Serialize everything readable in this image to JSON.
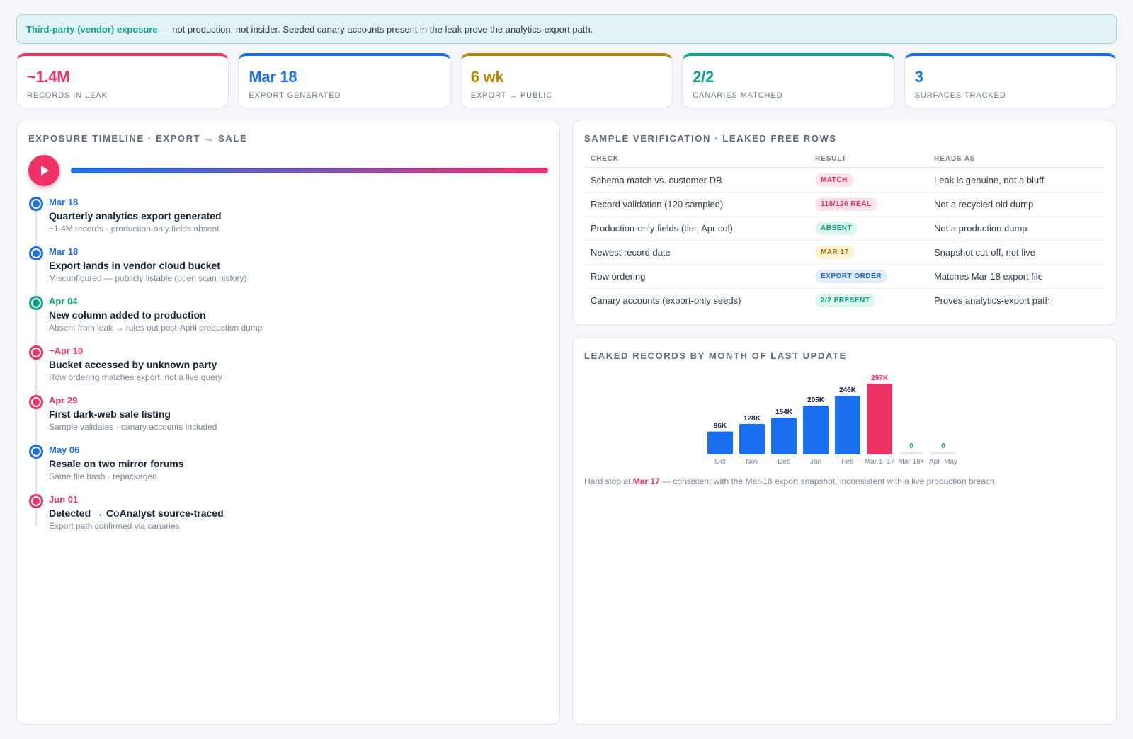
{
  "banner": {
    "lead": "Third-party (vendor) exposure",
    "text": "— not production, not insider. Seeded canary accounts present in the leak prove the analytics-export path."
  },
  "kpis": [
    {
      "value": "~1.4M",
      "label": "Records in leak",
      "color": "#ef3264"
    },
    {
      "value": "Mar 18",
      "label": "Export generated",
      "color": "#1a6ef0"
    },
    {
      "value": "6 wk",
      "label": "Export → public",
      "color": "#b8860b"
    },
    {
      "value": "2/2",
      "label": "Canaries matched",
      "color": "#0aa48c"
    },
    {
      "value": "3",
      "label": "Surfaces tracked",
      "color": "#1a6ef0"
    }
  ],
  "timeline": {
    "title": "Exposure timeline · export → sale",
    "events": [
      {
        "date": "Mar 18",
        "title": "Quarterly analytics export generated",
        "sub": "~1.4M records · production-only fields absent",
        "tone": "blue"
      },
      {
        "date": "Mar 18",
        "title": "Export lands in vendor cloud bucket",
        "sub": "Misconfigured — publicly listable (open scan history)",
        "tone": "blue"
      },
      {
        "date": "Apr 04",
        "title": "New column added to production",
        "sub": "Absent from leak → rules out post-April production dump",
        "tone": "teal"
      },
      {
        "date": "~Apr 10",
        "title": "Bucket accessed by unknown party",
        "sub": "Row ordering matches export, not a live query",
        "tone": "red"
      },
      {
        "date": "Apr 29",
        "title": "First dark-web sale listing",
        "sub": "Sample validates · canary accounts included",
        "tone": "red"
      },
      {
        "date": "May 06",
        "title": "Resale on two mirror forums",
        "sub": "Same file hash · repackaged",
        "tone": "blue"
      },
      {
        "date": "Jun 01",
        "title": "Detected → CoAnalyst source-traced",
        "sub": "Export path confirmed via canaries",
        "tone": "red"
      }
    ]
  },
  "verification": {
    "title": "Sample verification · leaked free rows",
    "headers": {
      "check": "Check",
      "result": "Result",
      "reads": "Reads as"
    },
    "rows": [
      {
        "check": "Schema match vs. customer DB",
        "result": "MATCH",
        "tone": "red",
        "reads": "Leak is genuine, not a bluff"
      },
      {
        "check": "Record validation (120 sampled)",
        "result": "118/120 REAL",
        "tone": "red",
        "reads": "Not a recycled old dump"
      },
      {
        "check": "Production-only fields (tier, Apr col)",
        "result": "ABSENT",
        "tone": "teal",
        "reads": "Not a production dump"
      },
      {
        "check": "Newest record date",
        "result": "MAR 17",
        "tone": "amber",
        "reads": "Snapshot cut-off, not live"
      },
      {
        "check": "Row ordering",
        "result": "EXPORT ORDER",
        "tone": "blue",
        "reads": "Matches Mar-18 export file"
      },
      {
        "check": "Canary accounts (export-only seeds)",
        "result": "2/2 PRESENT",
        "tone": "teal",
        "reads": "Proves analytics-export path"
      }
    ]
  },
  "chart_data": {
    "type": "bar",
    "title": "Leaked records by month of last update",
    "categories": [
      "Oct",
      "Nov",
      "Dec",
      "Jan",
      "Feb",
      "Mar 1–17",
      "Mar 18+",
      "Apr–May"
    ],
    "values": [
      96,
      128,
      154,
      205,
      246,
      297,
      0,
      0
    ],
    "data_labels": [
      "96K",
      "128K",
      "154K",
      "205K",
      "246K",
      "297K",
      "0",
      "0"
    ],
    "unit": "K records",
    "ylim": [
      0,
      297
    ],
    "highlight": "Mar 1–17",
    "colors": {
      "bar": "#1a6ef0",
      "highlight": "#ef3264",
      "zero": "#e6eaef",
      "zero_label": "#0aa48c"
    },
    "grid": false
  },
  "chart_note": {
    "before": "Hard stop at",
    "highlight": "Mar 17",
    "after": "— consistent with the Mar-18 export snapshot, inconsistent with a live production breach."
  }
}
